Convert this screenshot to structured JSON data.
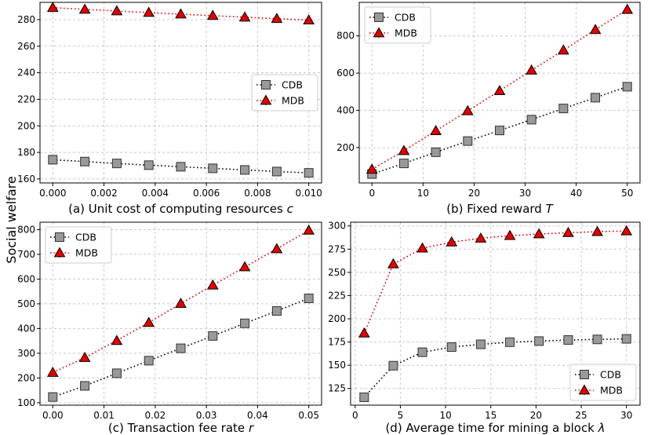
{
  "figure": {
    "ylabel": "Social welfare"
  },
  "colors": {
    "cdb_fill": "#999999",
    "mdb_fill": "#e00000",
    "cdb_line": "#000000",
    "mdb_line": "#e00000",
    "grid": "#c8c8c8"
  },
  "chart_data": [
    {
      "type": "line",
      "id": "a",
      "xlabel": "(a) Unit cost of computing resources",
      "xlabel_var": "c",
      "x": [
        0.0,
        0.00125,
        0.0025,
        0.00375,
        0.005,
        0.00625,
        0.0075,
        0.00875,
        0.01
      ],
      "xlim": [
        -0.0005,
        0.0105
      ],
      "ylim": [
        157,
        293
      ],
      "xticks": [
        0.0,
        0.002,
        0.004,
        0.006,
        0.008,
        0.01
      ],
      "xtick_labels": [
        "0.000",
        "0.002",
        "0.004",
        "0.006",
        "0.008",
        "0.010"
      ],
      "yticks": [
        160,
        180,
        200,
        220,
        240,
        260,
        280
      ],
      "ytick_labels": [
        "160",
        "180",
        "200",
        "220",
        "240",
        "260",
        "280"
      ],
      "legend_position": "right",
      "series": [
        {
          "name": "CDB",
          "marker": "square",
          "values": [
            174.5,
            173.1,
            171.7,
            170.4,
            169.2,
            168.0,
            166.8,
            165.6,
            164.6
          ]
        },
        {
          "name": "MDB",
          "marker": "triangle",
          "values": [
            289.0,
            287.7,
            286.5,
            285.3,
            284.1,
            283.0,
            281.8,
            280.7,
            279.6
          ]
        }
      ]
    },
    {
      "type": "line",
      "id": "b",
      "xlabel": "(b) Fixed reward",
      "xlabel_var": "T",
      "x": [
        0,
        6.25,
        12.5,
        18.75,
        25,
        31.25,
        37.5,
        43.75,
        50
      ],
      "xlim": [
        -2.5,
        52.5
      ],
      "ylim": [
        10,
        980
      ],
      "xticks": [
        0,
        10,
        20,
        30,
        40,
        50
      ],
      "xtick_labels": [
        "0",
        "10",
        "20",
        "30",
        "40",
        "50"
      ],
      "yticks": [
        200,
        400,
        600,
        800
      ],
      "ytick_labels": [
        "200",
        "400",
        "600",
        "800"
      ],
      "legend_position": "top-left",
      "series": [
        {
          "name": "CDB",
          "marker": "square",
          "values": [
            58,
            115,
            175,
            235,
            292,
            350,
            410,
            468,
            527
          ]
        },
        {
          "name": "MDB",
          "marker": "triangle",
          "values": [
            83,
            183,
            290,
            397,
            505,
            615,
            723,
            833,
            941
          ]
        }
      ]
    },
    {
      "type": "line",
      "id": "c",
      "xlabel": "(c) Transaction fee rate",
      "xlabel_var": "r",
      "x": [
        0.0,
        0.00625,
        0.0125,
        0.01875,
        0.025,
        0.03125,
        0.0375,
        0.04375,
        0.05
      ],
      "xlim": [
        -0.0025,
        0.0525
      ],
      "ylim": [
        90,
        830
      ],
      "xticks": [
        0.0,
        0.01,
        0.02,
        0.03,
        0.04,
        0.05
      ],
      "xtick_labels": [
        "0.00",
        "0.01",
        "0.02",
        "0.03",
        "0.04",
        "0.05"
      ],
      "yticks": [
        100,
        200,
        300,
        400,
        500,
        600,
        700,
        800
      ],
      "ytick_labels": [
        "100",
        "200",
        "300",
        "400",
        "500",
        "600",
        "700",
        "800"
      ],
      "legend_position": "top-left",
      "series": [
        {
          "name": "CDB",
          "marker": "square",
          "values": [
            123,
            168,
            219,
            270,
            320,
            370,
            421,
            471,
            522
          ]
        },
        {
          "name": "MDB",
          "marker": "triangle",
          "values": [
            222,
            282,
            351,
            424,
            501,
            575,
            649,
            722,
            797
          ]
        }
      ]
    },
    {
      "type": "line",
      "id": "d",
      "xlabel": "(d) Average time for mining a block",
      "xlabel_var": "λ",
      "x": [
        1,
        4.22,
        7.44,
        10.67,
        13.89,
        17.11,
        20.33,
        23.56,
        26.78,
        30
      ],
      "xlim": [
        -0.5,
        31.5
      ],
      "ylim": [
        107,
        304
      ],
      "xticks": [
        0,
        5,
        10,
        15,
        20,
        25,
        30
      ],
      "xtick_labels": [
        "0",
        "5",
        "10",
        "15",
        "20",
        "25",
        "30"
      ],
      "yticks": [
        125,
        150,
        175,
        200,
        225,
        250,
        275,
        300
      ],
      "ytick_labels": [
        "125",
        "150",
        "175",
        "200",
        "225",
        "250",
        "275",
        "300"
      ],
      "legend_position": "bottom-right",
      "series": [
        {
          "name": "CDB",
          "marker": "square",
          "values": [
            115.5,
            149.5,
            164.0,
            169.5,
            172.5,
            174.8,
            176.0,
            177.2,
            177.8,
            178.4
          ]
        },
        {
          "name": "MDB",
          "marker": "triangle",
          "values": [
            184.5,
            259.0,
            276.0,
            282.5,
            286.7,
            289.5,
            291.3,
            292.7,
            293.8,
            294.5
          ]
        }
      ]
    }
  ]
}
